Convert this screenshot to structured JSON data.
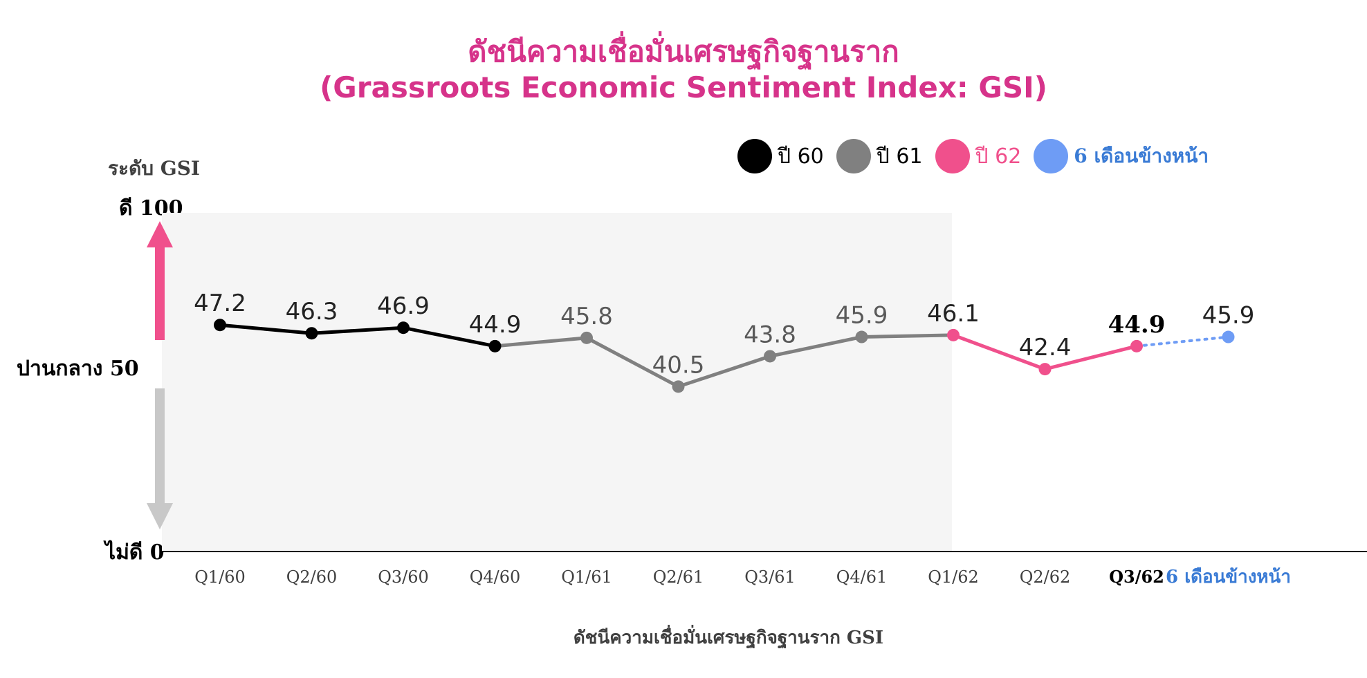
{
  "title_line1": "ดัชนีความเชื่อมั่นเศรษฐกิจฐานราก",
  "title_line2": "(Grassroots Economic Sentiment Index: GSI)",
  "legend": [
    {
      "label": "ปี 60",
      "color": "#000000"
    },
    {
      "label": "ปี 61",
      "color": "#808080"
    },
    {
      "label": "ปี 62",
      "color": "#f0508c"
    },
    {
      "label": "6 เดือนข้างหน้า",
      "color": "#6e9cf5"
    }
  ],
  "y_axis": {
    "title": "ระดับ GSI",
    "good_label": "ดี 100",
    "mid_label": "ปานกลาง 50",
    "bad_label": "ไม่ดี 0"
  },
  "x_axis_title": "ดัชนีความเชื่อมั่นเศรษฐกิจฐานราก GSI",
  "chart_data": {
    "type": "line",
    "title": "ดัชนีความเชื่อมั่นเศรษฐกิจฐานราก (Grassroots Economic Sentiment Index: GSI)",
    "xlabel": "ดัชนีความเชื่อมั่นเศรษฐกิจฐานราก GSI",
    "ylabel": "ระดับ GSI",
    "categories": [
      "Q1/60",
      "Q2/60",
      "Q3/60",
      "Q4/60",
      "Q1/61",
      "Q2/61",
      "Q3/61",
      "Q4/61",
      "Q1/62",
      "Q2/62",
      "Q3/62",
      "6 เดือนข้างหน้า"
    ],
    "values": [
      47.2,
      46.3,
      46.9,
      44.9,
      45.8,
      40.5,
      43.8,
      45.9,
      46.1,
      42.4,
      44.9,
      45.9
    ],
    "series": [
      {
        "name": "ปี 60",
        "color": "#000000",
        "start": 0,
        "end": 3,
        "dash": false
      },
      {
        "name": "ปี 61",
        "color": "#808080",
        "start": 3,
        "end": 8,
        "dash": false
      },
      {
        "name": "ปี 62",
        "color": "#f0508c",
        "start": 8,
        "end": 10,
        "dash": false
      },
      {
        "name": "6 เดือนข้างหน้า",
        "color": "#6e9cf5",
        "start": 10,
        "end": 11,
        "dash": true
      }
    ],
    "point_colors": [
      "#000000",
      "#000000",
      "#000000",
      "#000000",
      "#808080",
      "#808080",
      "#808080",
      "#808080",
      "#f0508c",
      "#f0508c",
      "#f0508c",
      "#6e9cf5"
    ],
    "highlight_index": 10,
    "ylim": [
      0,
      100
    ],
    "grid": false,
    "legend_position": "top-right"
  }
}
